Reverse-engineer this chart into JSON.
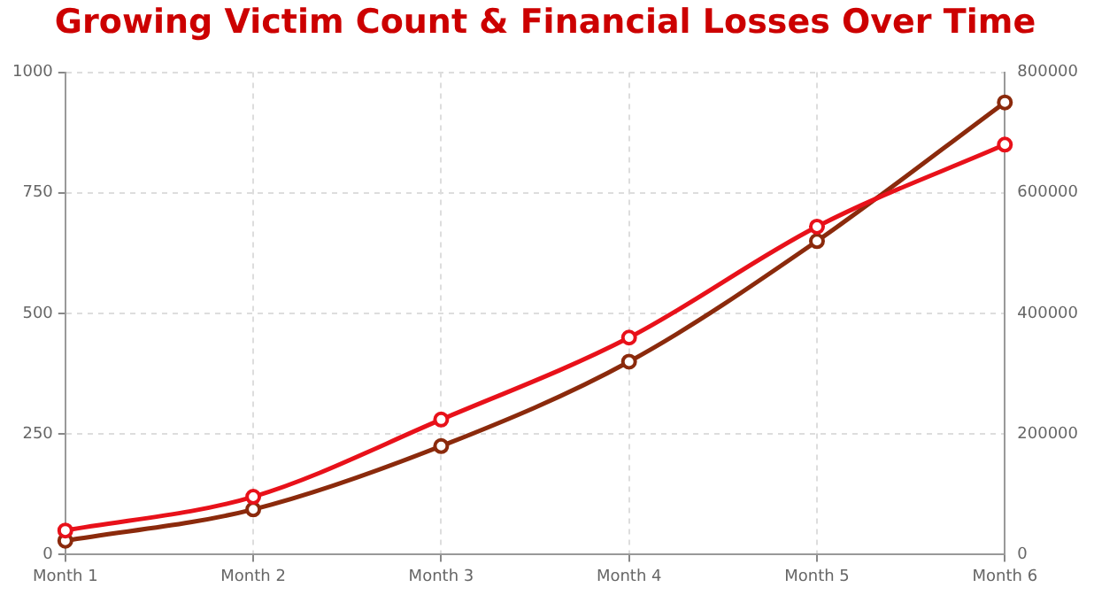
{
  "chart_data": {
    "type": "line",
    "title": "Growing Victim Count & Financial Losses Over Time",
    "categories": [
      "Month 1",
      "Month 2",
      "Month 3",
      "Month 4",
      "Month 5",
      "Month 6"
    ],
    "series": [
      {
        "color": "#e8111a",
        "values": [
          50,
          120,
          280,
          450,
          680,
          850
        ]
      },
      {
        "color": "#8b2a0c",
        "axis": "y2",
        "values": [
          23000,
          75000,
          180000,
          320000,
          520000,
          750000
        ]
      }
    ],
    "ylim": [
      0,
      1000
    ],
    "yticks": [
      0,
      250,
      500,
      750,
      1000
    ],
    "y2lim": [
      0,
      800000
    ],
    "y2ticks": [
      0,
      200000,
      400000,
      600000,
      800000
    ],
    "grid": true,
    "marker": "circle",
    "line_style": "solid",
    "legend": false
  }
}
